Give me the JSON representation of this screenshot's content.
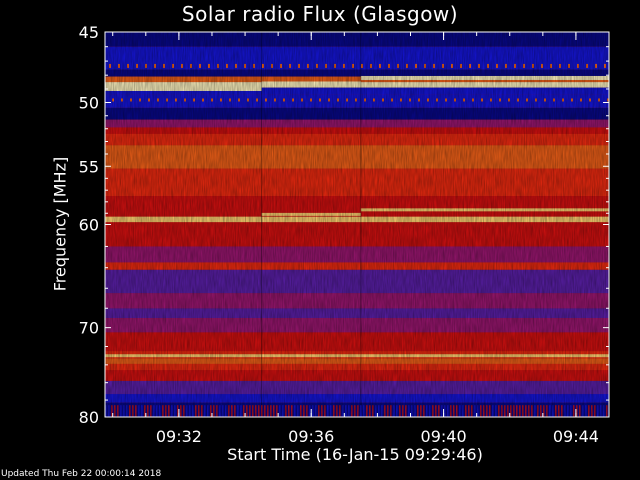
{
  "title": "Solar radio Flux (Glasgow)",
  "updated_text": "Updated Thu Feb 22 00:00:14 2018",
  "chart_data": {
    "type": "heatmap",
    "title": "Solar radio Flux (Glasgow)",
    "xlabel": "Start Time (16-Jan-15 09:29:46)",
    "ylabel": "Frequency [MHz]",
    "x_start": "09:29:46",
    "x_end": "09:45:00",
    "x_ticks": [
      "09:32",
      "09:36",
      "09:40",
      "09:44"
    ],
    "y_ticks": [
      45,
      50,
      55,
      60,
      70,
      80
    ],
    "ylim": [
      45,
      80
    ],
    "y_scale": "log",
    "scan_boundaries": [
      "09:34:30",
      "09:37:30"
    ],
    "strong_emission_lines_mhz": [
      48.5,
      59.5,
      73.0
    ],
    "colors": {
      "background": "#000000",
      "low": "#1010e0",
      "mid": "#e01010",
      "high": "#ffe080"
    }
  }
}
